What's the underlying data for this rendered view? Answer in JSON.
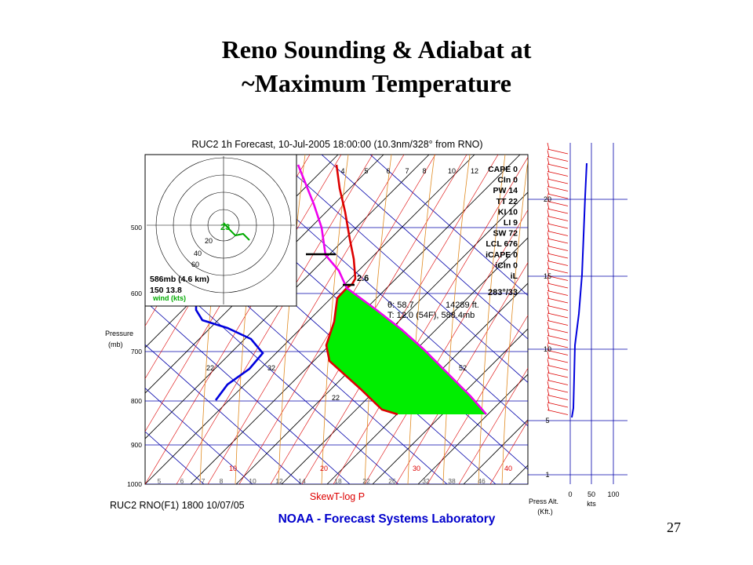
{
  "slide": {
    "title_line1": "Reno Sounding & Adiabat at",
    "title_line2": "~Maximum Temperature",
    "page_number": "27"
  },
  "chart": {
    "header": "RUC2 1h Forecast, 10-Jul-2005 18:00:00 (10.3nm/328° from RNO)",
    "footer_left": "RUC2 RNO(F1) 1800 10/07/05",
    "footer_title": "SkewT-log P",
    "credit": "NOAA - Forecast Systems Laboratory",
    "pressure_label_1": "Pressure",
    "pressure_label_2": "(mb)",
    "alt_label_1": "Press Alt.",
    "alt_label_2": "(Kft.)",
    "kts_label": "kts",
    "hodo_info": "586mb (4.6 km)",
    "hodo_wind": "150  13.8",
    "hodo_wind_units": "wind (kts)",
    "hodo_center_label": "23",
    "parcel_top_label": "2.6",
    "parcel_theta": "θ: 58.7",
    "parcel_height": "14289 ft.",
    "parcel_temp": "T: 12.0 (54F), 588.4mb",
    "storm_motion": "283°/33",
    "colors": {
      "parcel_fill": "#00ee00",
      "temperature": "#dd0000",
      "dewpoint": "#0000dd",
      "parcel": "#ee00ee"
    }
  },
  "indices": [
    {
      "label": "CAPE 0"
    },
    {
      "label": "CIn 0"
    },
    {
      "label": "PW 14"
    },
    {
      "label": "TT 22"
    },
    {
      "label": "KI 10"
    },
    {
      "label": "LI 9"
    },
    {
      "label": "SW 72"
    },
    {
      "label": "LCL 676"
    },
    {
      "label": "iCAPE 0"
    },
    {
      "label": "iCIn 0"
    },
    {
      "label": "iL"
    }
  ],
  "pressure_ticks": [
    {
      "label": "500"
    },
    {
      "label": "600"
    },
    {
      "label": "700"
    },
    {
      "label": "800"
    },
    {
      "label": "900"
    },
    {
      "label": "1000"
    }
  ],
  "temperature_ticks": [
    {
      "label": "10"
    },
    {
      "label": "20"
    },
    {
      "label": "30"
    },
    {
      "label": "40"
    }
  ],
  "mixing_ratio_top": [
    {
      "label": "4"
    },
    {
      "label": "5"
    },
    {
      "label": "6"
    },
    {
      "label": "7"
    },
    {
      "label": "8"
    },
    {
      "label": "10"
    },
    {
      "label": "12"
    }
  ],
  "mixing_ratio_bottom": [
    {
      "label": "5"
    },
    {
      "label": "6"
    },
    {
      "label": "7"
    },
    {
      "label": "8"
    },
    {
      "label": "10"
    },
    {
      "label": "12"
    },
    {
      "label": "14"
    },
    {
      "label": "18"
    },
    {
      "label": "22"
    },
    {
      "label": "26"
    },
    {
      "label": "32"
    },
    {
      "label": "38"
    },
    {
      "label": "46"
    }
  ],
  "adiabat_labels": [
    {
      "label": "22"
    },
    {
      "label": "32"
    },
    {
      "label": "52"
    },
    {
      "label": "22"
    }
  ],
  "hodo_ring_labels": [
    {
      "label": "20"
    },
    {
      "label": "40"
    },
    {
      "label": "60"
    }
  ],
  "altitude_ticks": [
    {
      "label": "20"
    },
    {
      "label": "15"
    },
    {
      "label": "10"
    },
    {
      "label": "5"
    },
    {
      "label": "1"
    }
  ],
  "speed_ticks": [
    {
      "label": "0"
    },
    {
      "label": "50"
    },
    {
      "label": "100"
    }
  ]
}
